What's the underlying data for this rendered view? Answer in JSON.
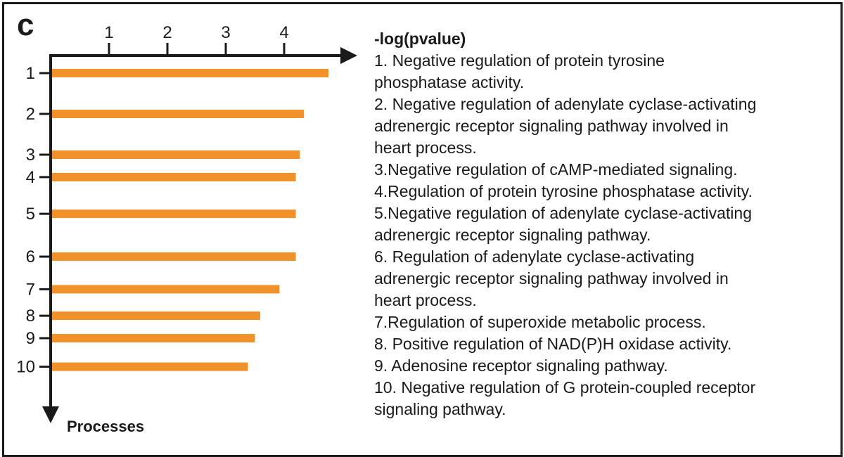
{
  "panel_label": "c",
  "chart_data": {
    "type": "bar",
    "orientation": "horizontal",
    "title": "",
    "xlabel": "-log(pvalue)",
    "ylabel": "Processes",
    "xticks": [
      1,
      2,
      3,
      4
    ],
    "categories": [
      "1",
      "2",
      "3",
      "4",
      "5",
      "6",
      "7",
      "8",
      "9",
      "10"
    ],
    "category_positions": [
      1,
      2,
      3,
      3.55,
      4.45,
      5.5,
      6.3,
      6.95,
      7.5,
      8.2
    ],
    "values": [
      4.76,
      4.34,
      4.27,
      4.2,
      4.2,
      4.2,
      3.92,
      3.59,
      3.5,
      3.38
    ],
    "xlim": [
      0,
      5
    ],
    "bar_color": "#f0912a",
    "axis_color": "#1a1a1a"
  },
  "legend": {
    "title": "-log(pvalue)",
    "lines": [
      "1. Negative regulation of protein tyrosine",
      "phosphatase activity.",
      "2. Negative regulation of adenylate cyclase-activating",
      "adrenergic receptor signaling pathway involved in",
      "heart process.",
      "3.Negative regulation of cAMP-mediated signaling.",
      "4.Regulation of protein tyrosine phosphatase activity.",
      "5.Negative regulation of adenylate cyclase-activating",
      "adrenergic receptor signaling pathway.",
      "6. Regulation of adenylate cyclase-activating",
      "adrenergic receptor signaling pathway involved in",
      "heart process.",
      "7.Regulation of superoxide metabolic process.",
      "8. Positive regulation of NAD(P)H oxidase activity.",
      "9. Adenosine receptor signaling pathway.",
      "10. Negative regulation of G protein-coupled receptor",
      "signaling pathway."
    ]
  }
}
